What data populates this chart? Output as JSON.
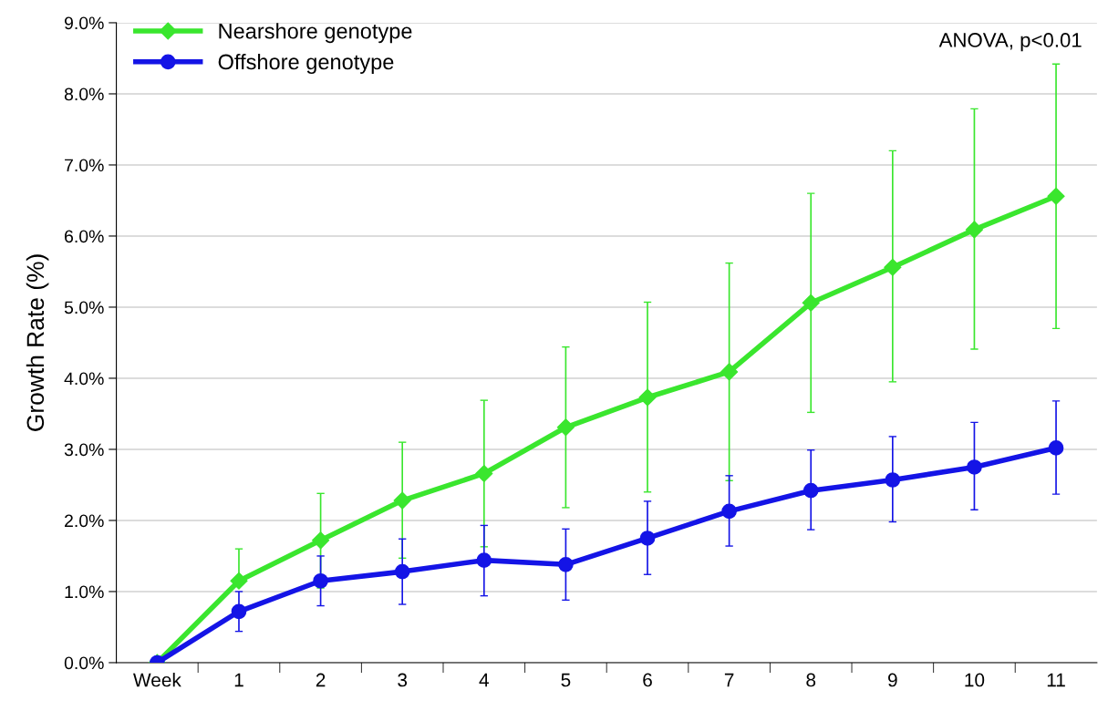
{
  "chart_data": {
    "type": "line",
    "ylabel": "Growth Rate (%)",
    "categories": [
      "Week",
      "1",
      "2",
      "3",
      "4",
      "5",
      "6",
      "7",
      "8",
      "9",
      "10",
      "11"
    ],
    "series": [
      {
        "name": "Nearshore genotype",
        "color": "#3ae62e",
        "marker": "diamond",
        "values": [
          0,
          1.15,
          1.72,
          2.28,
          2.66,
          3.31,
          3.73,
          4.09,
          5.06,
          5.56,
          6.09,
          6.56
        ],
        "errors": [
          null,
          [
            1.15,
            1.6
          ],
          [
            1.05,
            2.38
          ],
          [
            1.47,
            3.1
          ],
          [
            1.63,
            3.69
          ],
          [
            2.18,
            4.44
          ],
          [
            2.4,
            5.07
          ],
          [
            2.56,
            5.62
          ],
          [
            3.52,
            6.6
          ],
          [
            3.95,
            7.2
          ],
          [
            4.41,
            7.79
          ],
          [
            4.7,
            8.42
          ]
        ]
      },
      {
        "name": "Offshore genotype",
        "color": "#1414e6",
        "marker": "circle",
        "values": [
          0,
          0.72,
          1.15,
          1.28,
          1.44,
          1.38,
          1.75,
          2.13,
          2.42,
          2.57,
          2.75,
          3.02
        ],
        "errors": [
          null,
          [
            0.44,
            1.0
          ],
          [
            0.8,
            1.5
          ],
          [
            0.82,
            1.74
          ],
          [
            0.94,
            1.93
          ],
          [
            0.88,
            1.88
          ],
          [
            1.24,
            2.27
          ],
          [
            1.64,
            2.63
          ],
          [
            1.87,
            2.99
          ],
          [
            1.98,
            3.18
          ],
          [
            2.15,
            3.38
          ],
          [
            2.37,
            3.68
          ]
        ]
      }
    ],
    "ylim": [
      0,
      9
    ],
    "yticks": [
      {
        "value": 0,
        "label": "0.0%"
      },
      {
        "value": 1,
        "label": "1.0%"
      },
      {
        "value": 2,
        "label": "2.0%"
      },
      {
        "value": 3,
        "label": "3.0%"
      },
      {
        "value": 4,
        "label": "4.0%"
      },
      {
        "value": 5,
        "label": "5.0%"
      },
      {
        "value": 6,
        "label": "6.0%"
      },
      {
        "value": 7,
        "label": "7.0%"
      },
      {
        "value": 8,
        "label": "8.0%"
      },
      {
        "value": 9,
        "label": "9.0%"
      }
    ],
    "grid": "y",
    "legend": "top left",
    "line_style": "solid",
    "annotations": [
      "ANOVA, p<0.01"
    ]
  }
}
